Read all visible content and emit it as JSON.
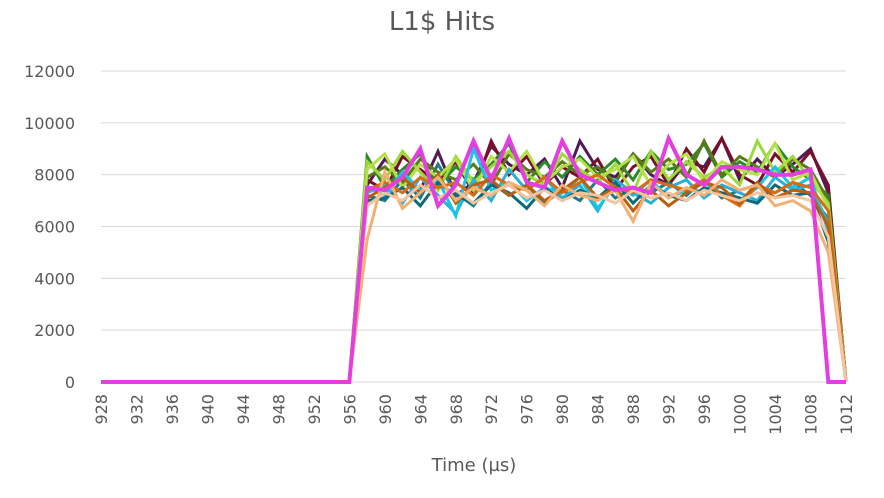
{
  "chart_data": {
    "type": "line",
    "title": "L1$ Hits",
    "xlabel": "Time (µs)",
    "ylabel": "",
    "ylim": [
      0,
      12000
    ],
    "yticks": [
      "0",
      "2000",
      "4000",
      "6000",
      "8000",
      "10000",
      "12000"
    ],
    "x": [
      928,
      930,
      932,
      934,
      936,
      938,
      940,
      942,
      944,
      946,
      948,
      950,
      952,
      954,
      956,
      958,
      960,
      962,
      964,
      966,
      968,
      970,
      972,
      974,
      976,
      978,
      980,
      982,
      984,
      986,
      988,
      990,
      992,
      994,
      996,
      998,
      1000,
      1002,
      1004,
      1006,
      1008,
      1010,
      1012
    ],
    "xticks": [
      "928",
      "932",
      "936",
      "940",
      "944",
      "948",
      "952",
      "956",
      "960",
      "964",
      "968",
      "972",
      "976",
      "980",
      "984",
      "988",
      "992",
      "996",
      "1000",
      "1004",
      "1008",
      "1012"
    ],
    "grid": true,
    "legend": "none",
    "series": [
      {
        "color": "#4f1a55",
        "values": [
          0,
          0,
          0,
          0,
          0,
          0,
          0,
          0,
          0,
          0,
          0,
          0,
          0,
          0,
          0,
          7600,
          8600,
          8000,
          7400,
          8900,
          7200,
          7700,
          9100,
          8400,
          8000,
          8600,
          7500,
          9300,
          8200,
          7900,
          8800,
          8000,
          7600,
          8500,
          8300,
          9400,
          7800,
          8600,
          7900,
          8400,
          9000,
          7300,
          0
        ]
      },
      {
        "color": "#7a0f2a",
        "values": [
          0,
          0,
          0,
          0,
          0,
          0,
          0,
          0,
          0,
          0,
          0,
          0,
          0,
          0,
          0,
          7800,
          7400,
          8700,
          8200,
          7700,
          8500,
          7300,
          9300,
          8000,
          8700,
          7600,
          8300,
          7900,
          8600,
          7400,
          8300,
          8700,
          7600,
          9000,
          8100,
          9400,
          8000,
          7600,
          8800,
          8100,
          8900,
          7600,
          0
        ]
      },
      {
        "color": "#1f7a8c",
        "values": [
          0,
          0,
          0,
          0,
          0,
          0,
          0,
          0,
          0,
          0,
          0,
          0,
          0,
          0,
          0,
          7200,
          7000,
          7800,
          7100,
          8400,
          7300,
          6800,
          7700,
          7200,
          7600,
          6900,
          7400,
          7000,
          7800,
          7100,
          7500,
          7300,
          7700,
          7200,
          7800,
          7100,
          7400,
          7600,
          7300,
          7700,
          7200,
          6300,
          0
        ]
      },
      {
        "color": "#2a8a2a",
        "values": [
          0,
          0,
          0,
          0,
          0,
          0,
          0,
          0,
          0,
          0,
          0,
          0,
          0,
          0,
          0,
          8700,
          7500,
          8200,
          8800,
          7600,
          8300,
          7800,
          8400,
          9200,
          7700,
          8500,
          7900,
          8700,
          8000,
          8600,
          7800,
          8900,
          8200,
          8400,
          9200,
          7900,
          8500,
          8100,
          9200,
          8300,
          7800,
          7200,
          0
        ]
      },
      {
        "color": "#5a7a1a",
        "values": [
          0,
          0,
          0,
          0,
          0,
          0,
          0,
          0,
          0,
          0,
          0,
          0,
          0,
          0,
          0,
          7900,
          8300,
          7700,
          8600,
          8100,
          7800,
          8400,
          7600,
          8800,
          8200,
          7900,
          8500,
          8000,
          8300,
          7700,
          8800,
          8100,
          8600,
          7900,
          9300,
          8000,
          8700,
          8300,
          7900,
          8600,
          8200,
          7000,
          0
        ]
      },
      {
        "color": "#9ed93a",
        "values": [
          0,
          0,
          0,
          0,
          0,
          0,
          0,
          0,
          0,
          0,
          0,
          0,
          0,
          0,
          0,
          8500,
          7800,
          8900,
          8100,
          7400,
          8700,
          7700,
          8300,
          8900,
          8000,
          7600,
          8800,
          8200,
          7700,
          8400,
          7300,
          8900,
          7800,
          8500,
          7900,
          8300,
          7600,
          9300,
          8100,
          8700,
          7800,
          6900,
          0
        ]
      },
      {
        "color": "#b5e04a",
        "values": [
          0,
          0,
          0,
          0,
          0,
          0,
          0,
          0,
          0,
          0,
          0,
          0,
          0,
          0,
          0,
          8200,
          8800,
          7500,
          8400,
          7900,
          8600,
          7400,
          8700,
          8100,
          8900,
          7700,
          8300,
          8600,
          7900,
          8200,
          8700,
          7600,
          8400,
          8800,
          7700,
          8500,
          8200,
          8000,
          9200,
          7800,
          8100,
          6700,
          0
        ]
      },
      {
        "color": "#2ab0d8",
        "values": [
          0,
          0,
          0,
          0,
          0,
          0,
          0,
          0,
          0,
          0,
          0,
          0,
          0,
          0,
          0,
          7300,
          7600,
          6900,
          7900,
          7200,
          6500,
          7800,
          7000,
          8200,
          7400,
          7900,
          7100,
          7600,
          6600,
          7800,
          7300,
          6900,
          7500,
          7800,
          7100,
          7600,
          7300,
          7000,
          7900,
          7400,
          7600,
          6100,
          0
        ]
      },
      {
        "color": "#16c6e8",
        "values": [
          0,
          0,
          0,
          0,
          0,
          0,
          0,
          0,
          0,
          0,
          0,
          0,
          0,
          0,
          0,
          7500,
          7200,
          8100,
          7400,
          7800,
          6400,
          9000,
          7400,
          7700,
          7000,
          7500,
          7300,
          7900,
          6700,
          7600,
          7200,
          7800,
          7100,
          7400,
          7700,
          7200,
          7000,
          7500,
          8300,
          7500,
          7900,
          5800,
          0
        ]
      },
      {
        "color": "#0e6a7a",
        "values": [
          0,
          0,
          0,
          0,
          0,
          0,
          0,
          0,
          0,
          0,
          0,
          0,
          0,
          0,
          0,
          7000,
          7100,
          7500,
          6800,
          7700,
          7200,
          6900,
          7600,
          7300,
          6700,
          7500,
          7000,
          7400,
          7100,
          7700,
          6900,
          7600,
          7200,
          7000,
          7500,
          7300,
          7100,
          6900,
          7600,
          7200,
          7300,
          5400,
          0
        ]
      },
      {
        "color": "#d96b14",
        "values": [
          0,
          0,
          0,
          0,
          0,
          0,
          0,
          0,
          0,
          0,
          0,
          0,
          0,
          0,
          0,
          7400,
          7700,
          7300,
          7900,
          7500,
          7700,
          7200,
          8000,
          7600,
          7400,
          7900,
          7300,
          7700,
          8000,
          7500,
          7300,
          7800,
          7600,
          7400,
          7800,
          7200,
          6800,
          7600,
          7300,
          7700,
          7500,
          6600,
          0
        ]
      },
      {
        "color": "#b8600f",
        "values": [
          0,
          0,
          0,
          0,
          0,
          0,
          0,
          0,
          0,
          0,
          0,
          0,
          0,
          0,
          0,
          7100,
          7500,
          7900,
          7300,
          8000,
          6900,
          7600,
          7800,
          7200,
          7600,
          7000,
          7400,
          7900,
          7100,
          7500,
          6600,
          7400,
          6800,
          7300,
          7700,
          7500,
          6900,
          7700,
          7100,
          7400,
          7300,
          6000,
          0
        ]
      },
      {
        "color": "#f2b073",
        "values": [
          0,
          0,
          0,
          0,
          0,
          0,
          0,
          0,
          0,
          0,
          0,
          0,
          0,
          0,
          0,
          5500,
          8100,
          6700,
          7300,
          7900,
          7000,
          7500,
          7200,
          7700,
          7400,
          6800,
          7600,
          7200,
          7000,
          7400,
          6200,
          7700,
          7100,
          7500,
          7200,
          7800,
          7400,
          7600,
          6800,
          7000,
          6600,
          5000,
          0
        ]
      },
      {
        "color": "#f7c4a0",
        "values": [
          0,
          0,
          0,
          0,
          0,
          0,
          0,
          0,
          0,
          0,
          0,
          0,
          0,
          0,
          0,
          6800,
          7300,
          7000,
          7600,
          7100,
          7400,
          6900,
          7300,
          7600,
          7100,
          7400,
          7000,
          7300,
          7200,
          6900,
          7400,
          7100,
          7300,
          7000,
          7400,
          7200,
          7000,
          7300,
          7100,
          7200,
          7000,
          5600,
          0
        ]
      },
      {
        "color": "#e43ee0",
        "values": [
          0,
          0,
          0,
          0,
          0,
          0,
          0,
          0,
          0,
          0,
          0,
          0,
          0,
          0,
          0,
          7500,
          7400,
          7900,
          9000,
          6800,
          7600,
          9300,
          7800,
          9400,
          7700,
          7500,
          9300,
          8000,
          7700,
          7400,
          7500,
          7300,
          9400,
          8000,
          7600,
          8300,
          8300,
          8200,
          8000,
          8000,
          8200,
          0,
          0
        ]
      }
    ]
  }
}
